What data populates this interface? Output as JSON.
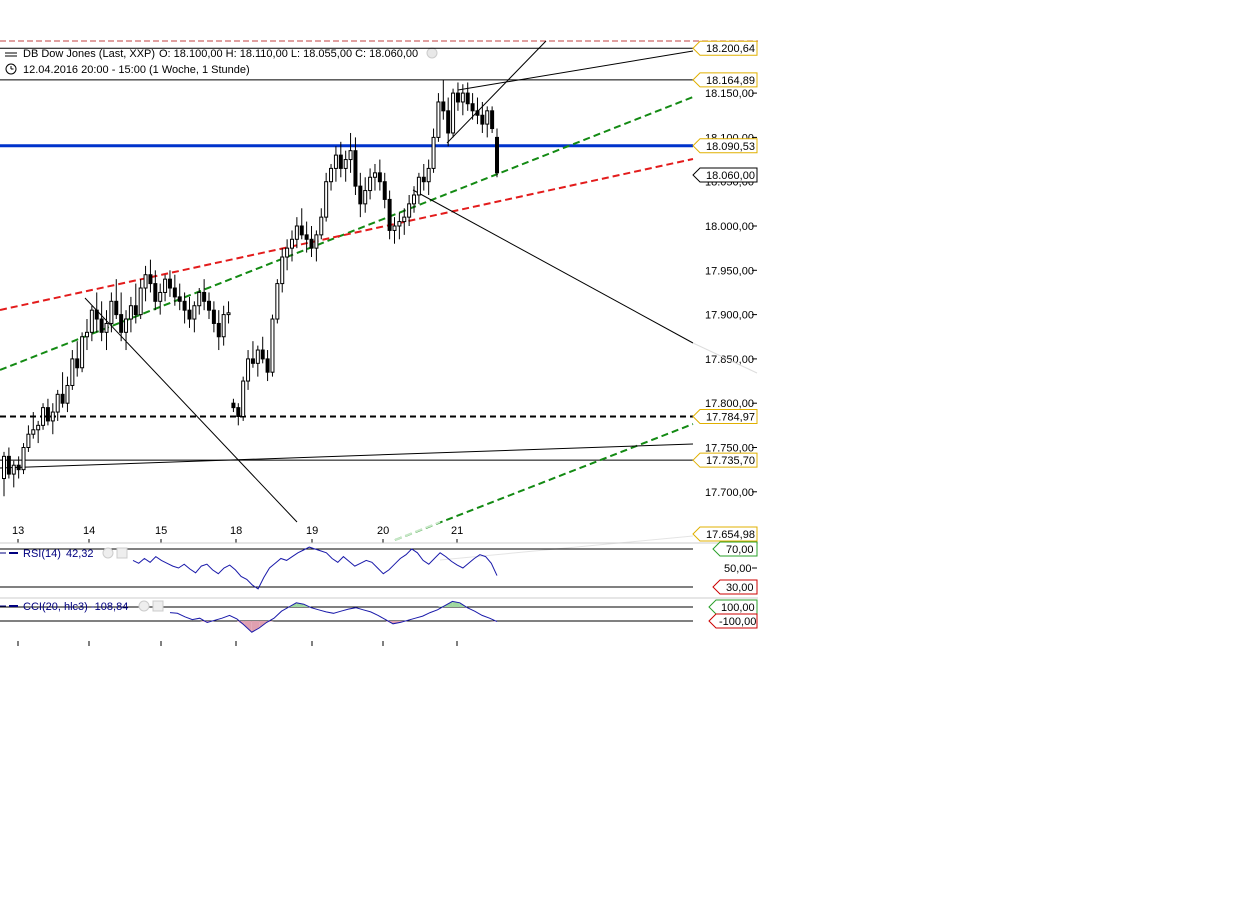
{
  "header": {
    "instrument": "DB Dow Jones (Last, XXP)",
    "ohlc": "O: 18.100,00  H: 18.110,00  L: 18.055,00  C: 18.060,00",
    "period": "12.04.2016 20:00 - 15:00 (1 Woche, 1 Stunde)"
  },
  "colors": {
    "candle": "#000000",
    "blue_line": "#0033cc",
    "red_dash": "#e31b1b",
    "green_dash": "#138a13",
    "black_dash": "#000000",
    "tag_gold": "#e0b000",
    "tag_green": "#2aa02a",
    "tag_red": "#cc0000",
    "indicator_line": "#1a1aaa",
    "cci_pos_fill": "#9fd89f",
    "cci_neg_fill": "#e0a0b0"
  },
  "chart_data": {
    "type": "candlestick",
    "y_axis_ticks": [
      "18.150,00",
      "18.100,00",
      "18.050,00",
      "18.000,00",
      "17.950,00",
      "17.900,00",
      "17.850,00",
      "17.800,00",
      "17.750,00",
      "17.700,00"
    ],
    "ylim": [
      17660,
      18210
    ],
    "x_day_labels": [
      "13",
      "14",
      "15",
      "18",
      "19",
      "20",
      "21"
    ],
    "horizontal_lines": [
      {
        "value": 18200.64,
        "label": "18.200,64",
        "style": "solid-thin",
        "tag": "gold"
      },
      {
        "value": 18164.89,
        "label": "18.164,89",
        "style": "solid-thin",
        "tag": "gold"
      },
      {
        "value": 18090.53,
        "label": "18.090,53",
        "style": "solid-thick-blue",
        "tag": "gold"
      },
      {
        "value": 18060.0,
        "label": "18.060,00",
        "style": "none",
        "tag": "black"
      },
      {
        "value": 17784.97,
        "label": "17.784,97",
        "style": "dashed-black",
        "tag": "gold"
      },
      {
        "value": 17735.7,
        "label": "17.735,70",
        "style": "solid-thin",
        "tag": "gold"
      },
      {
        "value": 17654.98,
        "label": "17.654,98",
        "style": "none",
        "tag": "gold"
      }
    ],
    "candles": [
      [
        17715,
        17745,
        17695,
        17740
      ],
      [
        17740,
        17750,
        17715,
        17720
      ],
      [
        17720,
        17735,
        17705,
        17730
      ],
      [
        17730,
        17740,
        17715,
        17725
      ],
      [
        17725,
        17755,
        17720,
        17750
      ],
      [
        17750,
        17775,
        17745,
        17765
      ],
      [
        17765,
        17790,
        17760,
        17770
      ],
      [
        17770,
        17780,
        17755,
        17775
      ],
      [
        17775,
        17800,
        17770,
        17795
      ],
      [
        17795,
        17805,
        17775,
        17780
      ],
      [
        17780,
        17800,
        17765,
        17790
      ],
      [
        17790,
        17815,
        17780,
        17810
      ],
      [
        17810,
        17835,
        17795,
        17800
      ],
      [
        17800,
        17830,
        17790,
        17820
      ],
      [
        17820,
        17860,
        17815,
        17850
      ],
      [
        17850,
        17870,
        17830,
        17840
      ],
      [
        17840,
        17880,
        17835,
        17875
      ],
      [
        17875,
        17895,
        17860,
        17880
      ],
      [
        17880,
        17910,
        17870,
        17905
      ],
      [
        17905,
        17925,
        17880,
        17895
      ],
      [
        17895,
        17915,
        17870,
        17880
      ],
      [
        17880,
        17905,
        17860,
        17890
      ],
      [
        17890,
        17925,
        17880,
        17915
      ],
      [
        17915,
        17940,
        17895,
        17900
      ],
      [
        17900,
        17925,
        17870,
        17880
      ],
      [
        17880,
        17905,
        17860,
        17895
      ],
      [
        17895,
        17920,
        17880,
        17910
      ],
      [
        17910,
        17935,
        17890,
        17900
      ],
      [
        17900,
        17940,
        17895,
        17930
      ],
      [
        17930,
        17955,
        17915,
        17945
      ],
      [
        17945,
        17962,
        17925,
        17935
      ],
      [
        17935,
        17950,
        17905,
        17915
      ],
      [
        17915,
        17935,
        17900,
        17925
      ],
      [
        17925,
        17945,
        17915,
        17940
      ],
      [
        17940,
        17950,
        17920,
        17930
      ],
      [
        17930,
        17945,
        17910,
        17920
      ],
      [
        17920,
        17935,
        17905,
        17915
      ],
      [
        17915,
        17925,
        17890,
        17905
      ],
      [
        17905,
        17920,
        17885,
        17895
      ],
      [
        17895,
        17915,
        17880,
        17910
      ],
      [
        17910,
        17930,
        17900,
        17925
      ],
      [
        17925,
        17940,
        17905,
        17915
      ],
      [
        17915,
        17925,
        17895,
        17905
      ],
      [
        17905,
        17915,
        17880,
        17890
      ],
      [
        17890,
        17905,
        17860,
        17875
      ],
      [
        17875,
        17910,
        17865,
        17900
      ],
      [
        17900,
        17915,
        17890,
        17902
      ],
      [
        17800,
        17805,
        17790,
        17795
      ],
      [
        17795,
        17800,
        17775,
        17785
      ],
      [
        17785,
        17830,
        17780,
        17825
      ],
      [
        17825,
        17860,
        17815,
        17850
      ],
      [
        17850,
        17870,
        17840,
        17845
      ],
      [
        17845,
        17865,
        17830,
        17860
      ],
      [
        17860,
        17875,
        17845,
        17850
      ],
      [
        17850,
        17860,
        17825,
        17835
      ],
      [
        17835,
        17900,
        17830,
        17895
      ],
      [
        17895,
        17940,
        17890,
        17935
      ],
      [
        17935,
        17975,
        17925,
        17965
      ],
      [
        17965,
        17985,
        17950,
        17975
      ],
      [
        17975,
        17995,
        17960,
        17985
      ],
      [
        17985,
        18010,
        17975,
        18000
      ],
      [
        18000,
        18020,
        17985,
        17990
      ],
      [
        17990,
        18005,
        17970,
        17985
      ],
      [
        17985,
        18000,
        17965,
        17975
      ],
      [
        17975,
        17995,
        17960,
        17990
      ],
      [
        17990,
        18020,
        17985,
        18010
      ],
      [
        18010,
        18060,
        18005,
        18050
      ],
      [
        18050,
        18070,
        18040,
        18065
      ],
      [
        18065,
        18090,
        18050,
        18080
      ],
      [
        18080,
        18095,
        18055,
        18065
      ],
      [
        18065,
        18085,
        18050,
        18075
      ],
      [
        18075,
        18105,
        18060,
        18085
      ],
      [
        18085,
        18100,
        18035,
        18045
      ],
      [
        18045,
        18060,
        18010,
        18025
      ],
      [
        18025,
        18055,
        18015,
        18040
      ],
      [
        18040,
        18065,
        18030,
        18055
      ],
      [
        18055,
        18070,
        18040,
        18060
      ],
      [
        18060,
        18075,
        18040,
        18050
      ],
      [
        18050,
        18060,
        18020,
        18030
      ],
      [
        18030,
        18040,
        17985,
        17995
      ],
      [
        17995,
        18010,
        17980,
        18000
      ],
      [
        18000,
        18015,
        17985,
        18005
      ],
      [
        18005,
        18020,
        17990,
        18010
      ],
      [
        18010,
        18035,
        18000,
        18025
      ],
      [
        18025,
        18045,
        18015,
        18035
      ],
      [
        18035,
        18060,
        18025,
        18055
      ],
      [
        18055,
        18070,
        18040,
        18050
      ],
      [
        18050,
        18075,
        18035,
        18065
      ],
      [
        18065,
        18110,
        18060,
        18100
      ],
      [
        18100,
        18150,
        18095,
        18140
      ],
      [
        18140,
        18165,
        18120,
        18130
      ],
      [
        18130,
        18145,
        18090,
        18105
      ],
      [
        18105,
        18155,
        18100,
        18150
      ],
      [
        18150,
        18162,
        18130,
        18140
      ],
      [
        18140,
        18160,
        18125,
        18150
      ],
      [
        18150,
        18162,
        18130,
        18138
      ],
      [
        18138,
        18150,
        18120,
        18130
      ],
      [
        18130,
        18145,
        18115,
        18125
      ],
      [
        18125,
        18140,
        18105,
        18115
      ],
      [
        18115,
        18135,
        18100,
        18130
      ],
      [
        18130,
        18135,
        18105,
        18110
      ],
      [
        18100,
        18110,
        18055,
        18060
      ]
    ],
    "series": [
      {
        "name": "18.090,53",
        "type": "horizontal",
        "value": 18090.53
      },
      {
        "name": "17.784,97",
        "type": "horizontal-dashed",
        "value": 17784.97
      }
    ]
  },
  "rsi": {
    "label": "RSI(14)",
    "value": "42,32",
    "levels": [
      "70,00",
      "50,00",
      "30,00"
    ],
    "values": [
      58,
      55,
      60,
      56,
      62,
      58,
      55,
      52,
      50,
      54,
      49,
      45,
      52,
      54,
      48,
      44,
      50,
      53,
      48,
      41,
      38,
      32,
      28,
      40,
      50,
      55,
      60,
      58,
      62,
      66,
      69,
      72,
      70,
      68,
      66,
      60,
      56,
      62,
      57,
      52,
      55,
      58,
      56,
      50,
      44,
      48,
      54,
      60,
      64,
      70,
      66,
      58,
      54,
      60,
      66,
      62,
      57,
      53,
      50,
      55,
      60,
      64,
      62,
      55,
      42
    ]
  },
  "cci": {
    "label": "CCI(20, hlc3)",
    "value": "-108,84",
    "levels": [
      "100,00",
      "-100,00"
    ],
    "values": [
      20,
      10,
      -40,
      -80,
      -60,
      -120,
      -90,
      -60,
      -20,
      -70,
      -160,
      -260,
      -200,
      -120,
      -60,
      40,
      100,
      160,
      140,
      90,
      60,
      30,
      10,
      40,
      70,
      90,
      60,
      30,
      -20,
      -80,
      -140,
      -120,
      -90,
      -60,
      -30,
      20,
      60,
      120,
      180,
      160,
      90,
      40,
      -20,
      -60,
      -109
    ]
  }
}
